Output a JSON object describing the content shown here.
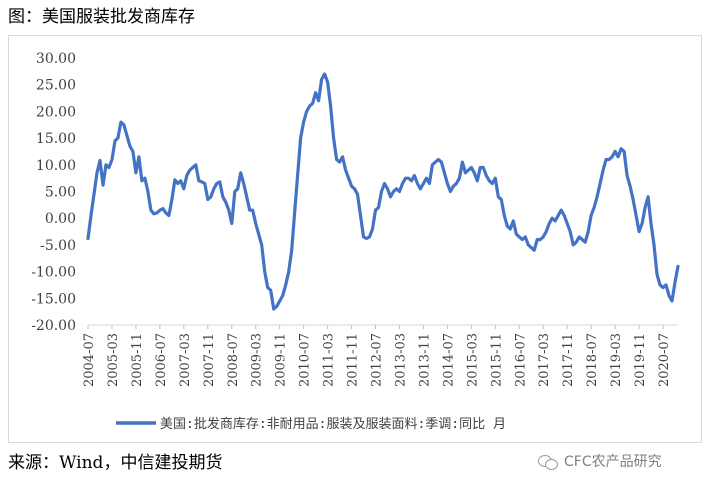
{
  "figure": {
    "title": "图：美国服装批发商库存",
    "source": "来源：Wind，中信建投期货",
    "watermark": "CFC农产品研究",
    "watermark_icon": "wechat-icon"
  },
  "chart_data": {
    "type": "line",
    "title": "",
    "xlabel": "",
    "ylabel": "",
    "ylim": [
      -20,
      30
    ],
    "yticks": [
      "30.00",
      "25.00",
      "20.00",
      "15.00",
      "10.00",
      "5.00",
      "0.00",
      "-5.00",
      "-10.00",
      "-15.00",
      "-20.00"
    ],
    "xticks": [
      "2004-07",
      "2005-03",
      "2005-11",
      "2006-07",
      "2007-03",
      "2007-11",
      "2008-07",
      "2009-03",
      "2009-11",
      "2010-07",
      "2011-03",
      "2011-11",
      "2012-07",
      "2013-03",
      "2013-11",
      "2014-07",
      "2015-03",
      "2015-11",
      "2016-07",
      "2017-03",
      "2017-11",
      "2018-07",
      "2019-03",
      "2019-11",
      "2020-07"
    ],
    "xrange": [
      "2004-07",
      "2020-12"
    ],
    "grid": false,
    "legend_position": "bottom",
    "series": [
      {
        "name": "美国:批发商库存:非耐用品:服装及服装面料:季调:同比  月",
        "color": "#4472c4",
        "points": [
          [
            "2004-07",
            -3.8
          ],
          [
            "2004-08",
            0.5
          ],
          [
            "2004-09",
            4.5
          ],
          [
            "2004-10",
            8.5
          ],
          [
            "2004-11",
            10.8
          ],
          [
            "2004-12",
            6.2
          ],
          [
            "2005-01",
            10.0
          ],
          [
            "2005-02",
            9.5
          ],
          [
            "2005-03",
            11.0
          ],
          [
            "2005-04",
            14.5
          ],
          [
            "2005-05",
            15.0
          ],
          [
            "2005-06",
            18.0
          ],
          [
            "2005-07",
            17.5
          ],
          [
            "2005-08",
            15.5
          ],
          [
            "2005-09",
            13.5
          ],
          [
            "2005-10",
            12.5
          ],
          [
            "2005-11",
            8.5
          ],
          [
            "2005-12",
            11.5
          ],
          [
            "2006-01",
            7.0
          ],
          [
            "2006-02",
            7.5
          ],
          [
            "2006-03",
            5.0
          ],
          [
            "2006-04",
            1.5
          ],
          [
            "2006-05",
            0.8
          ],
          [
            "2006-06",
            1.0
          ],
          [
            "2006-07",
            1.5
          ],
          [
            "2006-08",
            1.8
          ],
          [
            "2006-09",
            1.0
          ],
          [
            "2006-10",
            0.5
          ],
          [
            "2006-11",
            3.5
          ],
          [
            "2006-12",
            7.2
          ],
          [
            "2007-01",
            6.5
          ],
          [
            "2007-02",
            7.0
          ],
          [
            "2007-03",
            5.5
          ],
          [
            "2007-04",
            8.0
          ],
          [
            "2007-05",
            9.0
          ],
          [
            "2007-06",
            9.5
          ],
          [
            "2007-07",
            10.0
          ],
          [
            "2007-08",
            7.0
          ],
          [
            "2007-09",
            6.8
          ],
          [
            "2007-10",
            6.5
          ],
          [
            "2007-11",
            3.5
          ],
          [
            "2007-12",
            4.0
          ],
          [
            "2008-01",
            5.5
          ],
          [
            "2008-02",
            6.5
          ],
          [
            "2008-03",
            6.8
          ],
          [
            "2008-04",
            4.0
          ],
          [
            "2008-05",
            3.0
          ],
          [
            "2008-06",
            1.5
          ],
          [
            "2008-07",
            -1.0
          ],
          [
            "2008-08",
            5.0
          ],
          [
            "2008-09",
            5.5
          ],
          [
            "2008-10",
            8.5
          ],
          [
            "2008-11",
            6.5
          ],
          [
            "2008-12",
            4.0
          ],
          [
            "2009-01",
            1.5
          ],
          [
            "2009-02",
            1.5
          ],
          [
            "2009-03",
            -1.0
          ],
          [
            "2009-04",
            -3.0
          ],
          [
            "2009-05",
            -5.0
          ],
          [
            "2009-06",
            -10.0
          ],
          [
            "2009-07",
            -13.0
          ],
          [
            "2009-08",
            -13.5
          ],
          [
            "2009-09",
            -17.0
          ],
          [
            "2009-10",
            -16.5
          ],
          [
            "2009-11",
            -15.5
          ],
          [
            "2009-12",
            -14.5
          ],
          [
            "2010-01",
            -12.5
          ],
          [
            "2010-02",
            -10.0
          ],
          [
            "2010-03",
            -6.0
          ],
          [
            "2010-04",
            1.0
          ],
          [
            "2010-05",
            8.0
          ],
          [
            "2010-06",
            15.0
          ],
          [
            "2010-07",
            18.0
          ],
          [
            "2010-08",
            20.0
          ],
          [
            "2010-09",
            21.0
          ],
          [
            "2010-10",
            21.5
          ],
          [
            "2010-11",
            23.5
          ],
          [
            "2010-12",
            22.0
          ],
          [
            "2011-01",
            26.0
          ],
          [
            "2011-02",
            27.0
          ],
          [
            "2011-03",
            25.5
          ],
          [
            "2011-04",
            21.0
          ],
          [
            "2011-05",
            15.0
          ],
          [
            "2011-06",
            11.0
          ],
          [
            "2011-07",
            10.5
          ],
          [
            "2011-08",
            11.5
          ],
          [
            "2011-09",
            9.0
          ],
          [
            "2011-10",
            7.5
          ],
          [
            "2011-11",
            6.0
          ],
          [
            "2011-12",
            5.5
          ],
          [
            "2012-01",
            4.5
          ],
          [
            "2012-02",
            0.5
          ],
          [
            "2012-03",
            -3.5
          ],
          [
            "2012-04",
            -3.8
          ],
          [
            "2012-05",
            -3.5
          ],
          [
            "2012-06",
            -2.0
          ],
          [
            "2012-07",
            1.5
          ],
          [
            "2012-08",
            2.0
          ],
          [
            "2012-09",
            5.0
          ],
          [
            "2012-10",
            6.5
          ],
          [
            "2012-11",
            5.5
          ],
          [
            "2012-12",
            4.0
          ],
          [
            "2013-01",
            5.0
          ],
          [
            "2013-02",
            5.5
          ],
          [
            "2013-03",
            5.0
          ],
          [
            "2013-04",
            6.5
          ],
          [
            "2013-05",
            7.5
          ],
          [
            "2013-06",
            7.5
          ],
          [
            "2013-07",
            7.0
          ],
          [
            "2013-08",
            8.0
          ],
          [
            "2013-09",
            6.5
          ],
          [
            "2013-10",
            5.5
          ],
          [
            "2013-11",
            6.5
          ],
          [
            "2013-12",
            7.5
          ],
          [
            "2014-01",
            6.5
          ],
          [
            "2014-02",
            10.0
          ],
          [
            "2014-03",
            10.5
          ],
          [
            "2014-04",
            11.0
          ],
          [
            "2014-05",
            10.5
          ],
          [
            "2014-06",
            8.5
          ],
          [
            "2014-07",
            6.5
          ],
          [
            "2014-08",
            5.0
          ],
          [
            "2014-09",
            6.0
          ],
          [
            "2014-10",
            6.5
          ],
          [
            "2014-11",
            7.5
          ],
          [
            "2014-12",
            10.5
          ],
          [
            "2015-01",
            8.5
          ],
          [
            "2015-02",
            9.0
          ],
          [
            "2015-03",
            9.5
          ],
          [
            "2015-04",
            8.5
          ],
          [
            "2015-05",
            7.0
          ],
          [
            "2015-06",
            9.5
          ],
          [
            "2015-07",
            9.5
          ],
          [
            "2015-08",
            8.0
          ],
          [
            "2015-09",
            7.0
          ],
          [
            "2015-10",
            6.5
          ],
          [
            "2015-11",
            7.5
          ],
          [
            "2015-12",
            4.0
          ],
          [
            "2016-01",
            3.5
          ],
          [
            "2016-02",
            0.5
          ],
          [
            "2016-03",
            -1.5
          ],
          [
            "2016-04",
            -2.0
          ],
          [
            "2016-05",
            -0.5
          ],
          [
            "2016-06",
            -3.0
          ],
          [
            "2016-07",
            -3.5
          ],
          [
            "2016-08",
            -4.0
          ],
          [
            "2016-09",
            -3.5
          ],
          [
            "2016-10",
            -5.0
          ],
          [
            "2016-11",
            -5.5
          ],
          [
            "2016-12",
            -6.0
          ],
          [
            "2017-01",
            -4.0
          ],
          [
            "2017-02",
            -4.0
          ],
          [
            "2017-03",
            -3.5
          ],
          [
            "2017-04",
            -2.5
          ],
          [
            "2017-05",
            -1.0
          ],
          [
            "2017-06",
            0.0
          ],
          [
            "2017-07",
            -0.5
          ],
          [
            "2017-08",
            0.5
          ],
          [
            "2017-09",
            1.5
          ],
          [
            "2017-10",
            0.5
          ],
          [
            "2017-11",
            -1.0
          ],
          [
            "2017-12",
            -2.5
          ],
          [
            "2018-01",
            -5.0
          ],
          [
            "2018-02",
            -4.5
          ],
          [
            "2018-03",
            -3.5
          ],
          [
            "2018-04",
            -4.0
          ],
          [
            "2018-05",
            -4.5
          ],
          [
            "2018-06",
            -2.5
          ],
          [
            "2018-07",
            0.5
          ],
          [
            "2018-08",
            2.0
          ],
          [
            "2018-09",
            4.0
          ],
          [
            "2018-10",
            6.5
          ],
          [
            "2018-11",
            9.0
          ],
          [
            "2018-12",
            11.0
          ],
          [
            "2019-01",
            11.0
          ],
          [
            "2019-02",
            11.5
          ],
          [
            "2019-03",
            12.5
          ],
          [
            "2019-04",
            11.5
          ],
          [
            "2019-05",
            13.0
          ],
          [
            "2019-06",
            12.5
          ],
          [
            "2019-07",
            8.0
          ],
          [
            "2019-08",
            6.0
          ],
          [
            "2019-09",
            3.5
          ],
          [
            "2019-10",
            0.5
          ],
          [
            "2019-11",
            -2.5
          ],
          [
            "2019-12",
            -1.0
          ],
          [
            "2020-01",
            2.0
          ],
          [
            "2020-02",
            4.0
          ],
          [
            "2020-03",
            -1.0
          ],
          [
            "2020-04",
            -5.0
          ],
          [
            "2020-05",
            -10.5
          ],
          [
            "2020-06",
            -12.5
          ],
          [
            "2020-07",
            -13.0
          ],
          [
            "2020-08",
            -12.5
          ],
          [
            "2020-09",
            -14.5
          ],
          [
            "2020-10",
            -15.5
          ],
          [
            "2020-11",
            -12.0
          ],
          [
            "2020-12",
            -9.0
          ]
        ]
      }
    ]
  }
}
